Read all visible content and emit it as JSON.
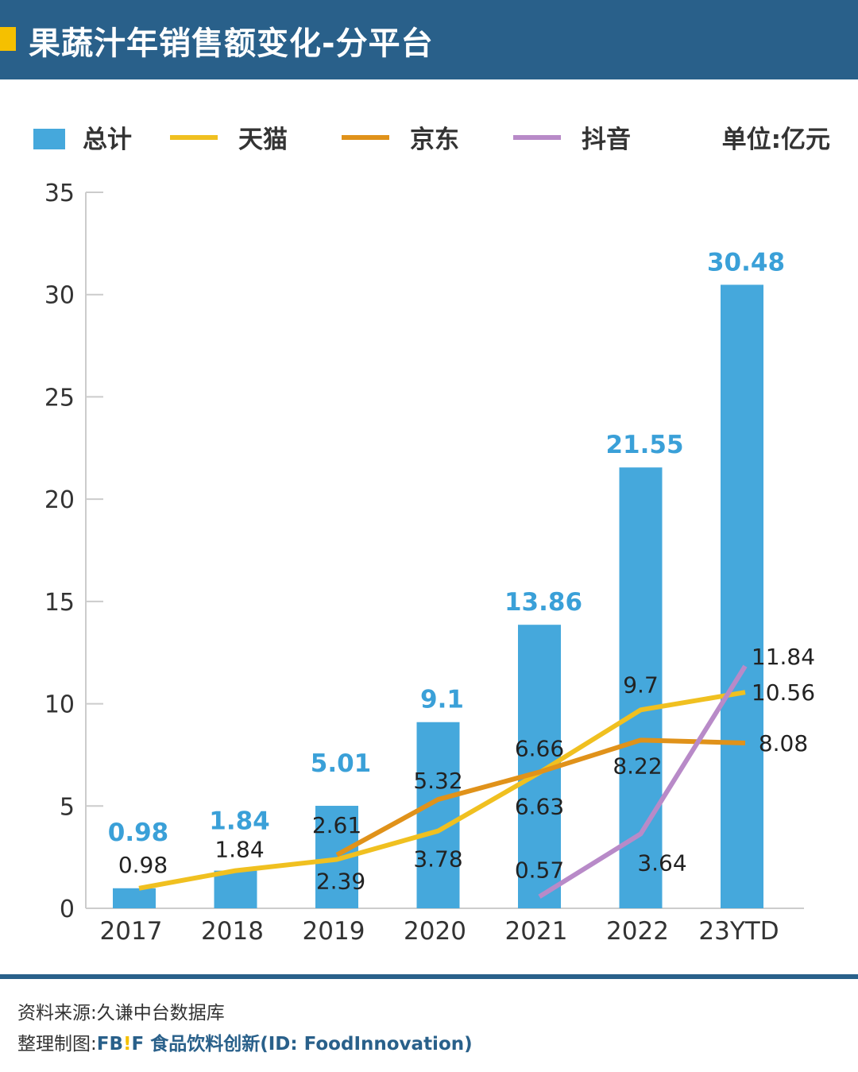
{
  "header": {
    "title": "果蔬汁年销售额变化-分平台"
  },
  "footer": {
    "source": "资料来源:久谦中台数据库",
    "maker_label": "整理制图:",
    "brand_fb": "FB",
    "brand_bang": "!",
    "brand_f": "F",
    "brand_rest": "食品饮料创新(ID: FoodInnovation)"
  },
  "colors": {
    "header": "#29608a",
    "bar": "#45a8dc",
    "tmall": "#f0c020",
    "jd": "#e0921a",
    "douyin": "#b88ac8"
  },
  "chart_data": {
    "type": "bar+line",
    "unit_label": "单位:亿元",
    "categories": [
      "2017",
      "2018",
      "2019",
      "2020",
      "2021",
      "2022",
      "23YTD"
    ],
    "ylim": [
      0,
      35
    ],
    "yticks": [
      "0",
      "5",
      "10",
      "15",
      "20",
      "25",
      "30",
      "35"
    ],
    "grid": false,
    "legend_position": "top",
    "series": [
      {
        "name": "总计",
        "type": "bar",
        "color": "#45a8dc",
        "values": [
          0.98,
          1.84,
          5.01,
          9.1,
          13.86,
          21.55,
          30.48
        ]
      },
      {
        "name": "天猫",
        "type": "line",
        "color": "#f0c020",
        "values": [
          0.98,
          1.84,
          2.39,
          3.78,
          6.63,
          9.7,
          10.56
        ]
      },
      {
        "name": "京东",
        "type": "line",
        "color": "#e0921a",
        "values": [
          null,
          null,
          2.61,
          5.32,
          6.66,
          8.22,
          8.08
        ]
      },
      {
        "name": "抖音",
        "type": "line",
        "color": "#b88ac8",
        "values": [
          null,
          null,
          null,
          null,
          0.57,
          3.64,
          11.84
        ]
      }
    ]
  }
}
